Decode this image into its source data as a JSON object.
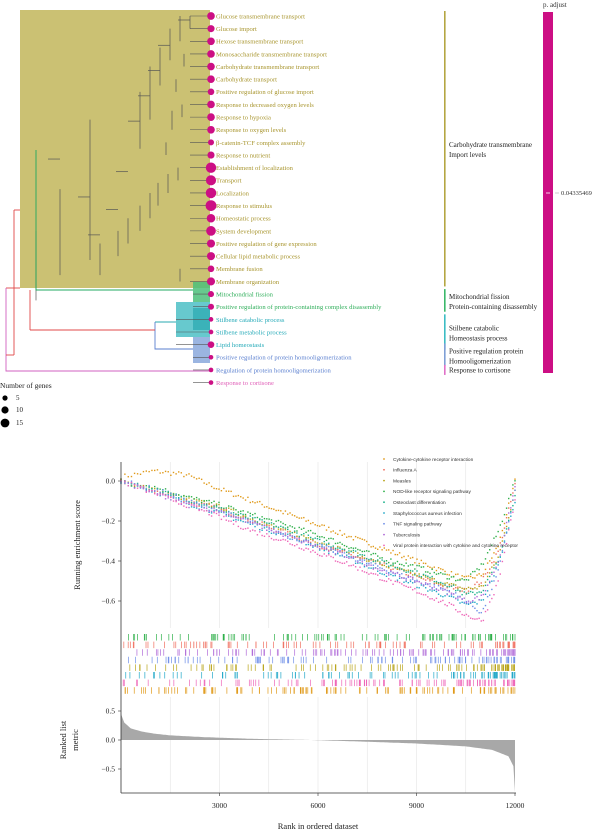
{
  "chart_data": [
    {
      "type": "dendrogram-dotplot",
      "title": "",
      "legend_size_title": "Number of genes",
      "legend_size_values": [
        "5",
        "10",
        "15"
      ],
      "legend_color_title": "p. adjust",
      "legend_color_value": "0.04335469",
      "dot_color": "#cc0f84",
      "terms": [
        {
          "label": "Glucose transmembrane transport",
          "genes": 8,
          "cluster": 0
        },
        {
          "label": "Glucose import",
          "genes": 7,
          "cluster": 0
        },
        {
          "label": "Hexose transmembrane transport",
          "genes": 8,
          "cluster": 0
        },
        {
          "label": "Monosaccharide transmembrane transport",
          "genes": 8,
          "cluster": 0
        },
        {
          "label": "Carbohydrate transmembrane transport",
          "genes": 8,
          "cluster": 0
        },
        {
          "label": "Carbohydrate transport",
          "genes": 8,
          "cluster": 0
        },
        {
          "label": "Positive regulation of glucose import",
          "genes": 6,
          "cluster": 0
        },
        {
          "label": "Response to decreased oxygen levels",
          "genes": 8,
          "cluster": 0
        },
        {
          "label": "Response to hypoxia",
          "genes": 8,
          "cluster": 0
        },
        {
          "label": "Response to oxygen levels",
          "genes": 8,
          "cluster": 0
        },
        {
          "label": "β-catenin-TCF complex assembly",
          "genes": 5,
          "cluster": 0
        },
        {
          "label": "Response to nutrient",
          "genes": 7,
          "cluster": 0
        },
        {
          "label": "Establishment of localization",
          "genes": 15,
          "cluster": 0
        },
        {
          "label": "Transport",
          "genes": 14,
          "cluster": 0
        },
        {
          "label": "Localization",
          "genes": 15,
          "cluster": 0
        },
        {
          "label": "Response to stimulus",
          "genes": 16,
          "cluster": 0
        },
        {
          "label": "Homeostatic process",
          "genes": 10,
          "cluster": 0
        },
        {
          "label": "System development",
          "genes": 13,
          "cluster": 0
        },
        {
          "label": "Positive regulation of gene expression",
          "genes": 9,
          "cluster": 0
        },
        {
          "label": "Cellular lipid metabolic process",
          "genes": 9,
          "cluster": 0
        },
        {
          "label": "Membrane fusion",
          "genes": 6,
          "cluster": 0
        },
        {
          "label": "Membrane organization",
          "genes": 9,
          "cluster": 0
        },
        {
          "label": "Mitochondrial fission",
          "genes": 5,
          "cluster": 1
        },
        {
          "label": "Positive regulation of protein-containing complex disassembly",
          "genes": 5,
          "cluster": 1
        },
        {
          "label": "Stilbene catabolic process",
          "genes": 3,
          "cluster": 2
        },
        {
          "label": "Stilbene metabolic process",
          "genes": 3,
          "cluster": 2
        },
        {
          "label": "Lipid homeostasis",
          "genes": 6,
          "cluster": 2
        },
        {
          "label": "Positive regulation of protein homooligomerization",
          "genes": 3,
          "cluster": 3
        },
        {
          "label": "Regulation of protein homooligomerization",
          "genes": 3,
          "cluster": 3
        }
      ],
      "extra_term": {
        "label": "Response to cortisone",
        "genes": 3,
        "cluster": 4
      },
      "clusters": [
        {
          "label_line1": "Carbohydrate transmembrane",
          "label_line2": "Import levels",
          "color": "#b5a642",
          "text_color": "#a8952e"
        },
        {
          "label_line1": "Mitochondrial fission",
          "label_line2": "Protein-containing disassembly",
          "color": "#3bb86a",
          "text_color": "#2fae5a"
        },
        {
          "label_line1": "Stilbene catabolic",
          "label_line2": "Homeostasis process",
          "color": "#3cbcc4",
          "text_color": "#25aab8"
        },
        {
          "label_line1": "Positive regulation protein",
          "label_line2": "Homooligomerization",
          "color": "#7f9fd6",
          "text_color": "#5a7fcf"
        },
        {
          "label_line1": "Response to cortisone",
          "label_line2": "",
          "color": "#e070c8",
          "text_color": "#e060b8"
        }
      ]
    },
    {
      "type": "line",
      "subtype": "gsea",
      "ylabel": "Running enrichment score",
      "yticks": [
        "0.0",
        "−0.2",
        "−0.4",
        "−0.6"
      ],
      "ytick_values": [
        0,
        -0.2,
        -0.4,
        -0.6
      ],
      "xlim": [
        0,
        12000
      ],
      "ylim": [
        -0.72,
        0.095
      ],
      "x": [
        0,
        1000,
        2000,
        3000,
        4000,
        5000,
        6000,
        7000,
        8000,
        9000,
        10000,
        10500,
        11000,
        11500,
        12000
      ],
      "legend_position": "top-right",
      "series": [
        {
          "name": "Cytokine-cytokine receptor interaction",
          "color": "#e09a1a",
          "values": [
            0.02,
            0.05,
            0.03,
            -0.04,
            -0.1,
            -0.16,
            -0.22,
            -0.28,
            -0.34,
            -0.4,
            -0.46,
            -0.49,
            -0.47,
            -0.32,
            0.0
          ]
        },
        {
          "name": "Influenza A",
          "color": "#f07060",
          "values": [
            0.0,
            -0.05,
            -0.1,
            -0.14,
            -0.2,
            -0.26,
            -0.32,
            -0.37,
            -0.42,
            -0.48,
            -0.53,
            -0.55,
            -0.5,
            -0.35,
            -0.02
          ]
        },
        {
          "name": "Measles",
          "color": "#b9a51c",
          "values": [
            0.0,
            -0.04,
            -0.09,
            -0.13,
            -0.19,
            -0.25,
            -0.3,
            -0.36,
            -0.42,
            -0.47,
            -0.52,
            -0.54,
            -0.53,
            -0.38,
            -0.05
          ]
        },
        {
          "name": "NOD-like receptor signaling pathway",
          "color": "#2fb04a",
          "values": [
            0.0,
            -0.03,
            -0.08,
            -0.12,
            -0.17,
            -0.22,
            -0.27,
            -0.33,
            -0.39,
            -0.43,
            -0.48,
            -0.5,
            -0.42,
            -0.25,
            0.0
          ]
        },
        {
          "name": "Osteoclast differentiation",
          "color": "#1fb38e",
          "values": [
            0.0,
            -0.04,
            -0.09,
            -0.14,
            -0.19,
            -0.24,
            -0.3,
            -0.35,
            -0.41,
            -0.46,
            -0.52,
            -0.57,
            -0.55,
            -0.4,
            -0.08
          ]
        },
        {
          "name": "Staphylococcus aureus infection",
          "color": "#22a8c8",
          "values": [
            0.0,
            -0.05,
            -0.11,
            -0.16,
            -0.22,
            -0.27,
            -0.33,
            -0.39,
            -0.46,
            -0.52,
            -0.58,
            -0.62,
            -0.6,
            -0.42,
            -0.1
          ]
        },
        {
          "name": "TNF signaling pathway",
          "color": "#6f8fe8",
          "values": [
            0.0,
            -0.04,
            -0.1,
            -0.15,
            -0.21,
            -0.27,
            -0.32,
            -0.38,
            -0.44,
            -0.5,
            -0.55,
            -0.6,
            -0.66,
            -0.45,
            -0.05
          ]
        },
        {
          "name": "Tuberculosis",
          "color": "#b06ad8",
          "values": [
            0.0,
            -0.06,
            -0.12,
            -0.15,
            -0.21,
            -0.27,
            -0.33,
            -0.38,
            -0.45,
            -0.5,
            -0.56,
            -0.6,
            -0.58,
            -0.4,
            -0.03
          ]
        },
        {
          "name": "Viral protein interaction with cytokine and cytokine receptor",
          "color": "#ee66b8",
          "values": [
            0.0,
            -0.06,
            -0.12,
            -0.18,
            -0.25,
            -0.3,
            -0.36,
            -0.42,
            -0.49,
            -0.55,
            -0.62,
            -0.67,
            -0.7,
            -0.5,
            -0.1
          ]
        }
      ]
    },
    {
      "type": "area",
      "ylabel_line1": "Ranked list",
      "ylabel_line2": "metric",
      "xlabel": "Rank in ordered dataset",
      "xticks": [
        "3000",
        "6000",
        "9000",
        "12000"
      ],
      "xtick_values": [
        3000,
        6000,
        9000,
        12000
      ],
      "yticks": [
        "0.5",
        "0.0",
        "−0.5"
      ],
      "ytick_values": [
        0.5,
        0,
        -0.5
      ],
      "ylim": [
        -0.9,
        0.6
      ],
      "x": [
        0,
        100,
        300,
        600,
        1000,
        1500,
        2500,
        4000,
        5800,
        7500,
        9000,
        10500,
        11300,
        11800,
        11950,
        12000
      ],
      "values": [
        0.45,
        0.3,
        0.2,
        0.15,
        0.11,
        0.08,
        0.05,
        0.02,
        0.0,
        -0.03,
        -0.06,
        -0.11,
        -0.17,
        -0.28,
        -0.45,
        -0.9
      ],
      "fill": "#a8a8a8"
    }
  ]
}
